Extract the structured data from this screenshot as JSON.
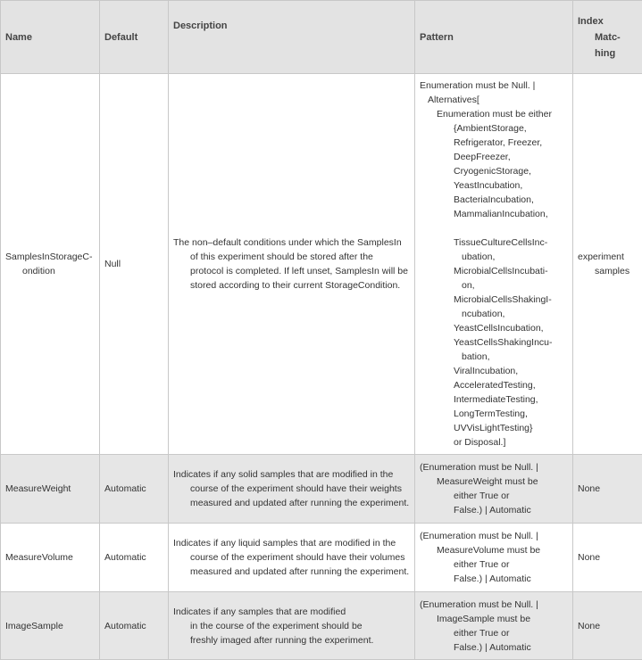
{
  "headers": {
    "name": "Name",
    "default": "Default",
    "description": "Description",
    "pattern": "Pattern",
    "index": [
      "Index",
      "Matc-",
      "hing"
    ]
  },
  "rows": [
    {
      "name": [
        "SamplesInStorageC-",
        "ondition"
      ],
      "default": "Null",
      "description": [
        "The non–default conditions under which the SamplesIn",
        "of this experiment should be stored after the",
        "protocol is completed. If left unset, SamplesIn will be",
        "stored according to their current StorageCondition."
      ],
      "pattern": [
        [
          0,
          "Enumeration must be Null.  |"
        ],
        [
          1,
          "Alternatives["
        ],
        [
          2,
          "Enumeration must be either"
        ],
        [
          3,
          "{AmbientStorage,"
        ],
        [
          3,
          "Refrigerator, Freezer,"
        ],
        [
          3,
          "DeepFreezer,"
        ],
        [
          3,
          "CryogenicStorage,"
        ],
        [
          3,
          "YeastIncubation,"
        ],
        [
          3,
          "BacteriaIncubation,"
        ],
        [
          3,
          "MammalianIncubation,"
        ],
        [
          3,
          ""
        ],
        [
          3,
          "TissueCultureCellsInc-"
        ],
        [
          4,
          "ubation,"
        ],
        [
          3,
          "MicrobialCellsIncubati-"
        ],
        [
          4,
          "on,"
        ],
        [
          3,
          "MicrobialCellsShakingI-"
        ],
        [
          4,
          "ncubation,"
        ],
        [
          3,
          "YeastCellsIncubation,"
        ],
        [
          3,
          "YeastCellsShakingIncu-"
        ],
        [
          4,
          "bation,"
        ],
        [
          3,
          "ViralIncubation,"
        ],
        [
          3,
          "AcceleratedTesting,"
        ],
        [
          3,
          "IntermediateTesting,"
        ],
        [
          3,
          "LongTermTesting,"
        ],
        [
          3,
          "UVVisLightTesting}"
        ],
        [
          3,
          "or Disposal.]"
        ]
      ],
      "index": [
        "experiment",
        "samples"
      ]
    },
    {
      "name": [
        "MeasureWeight"
      ],
      "default": "Automatic",
      "description": [
        "Indicates if any solid samples that are modified in the",
        "course of the experiment should have their weights",
        "measured and updated after running the experiment."
      ],
      "pattern": [
        [
          0,
          "(Enumeration must be Null.  |"
        ],
        [
          2,
          "MeasureWeight must be"
        ],
        [
          3,
          "either True or"
        ],
        [
          3,
          "False.) | Automatic"
        ]
      ],
      "index": [
        "None"
      ]
    },
    {
      "name": [
        "MeasureVolume"
      ],
      "default": "Automatic",
      "description": [
        "Indicates if any liquid samples that are modified in the",
        "course of the experiment should have their volumes",
        "measured and updated after running the experiment."
      ],
      "pattern": [
        [
          0,
          "(Enumeration must be Null.  |"
        ],
        [
          2,
          "MeasureVolume must be"
        ],
        [
          3,
          "either True or"
        ],
        [
          3,
          "False.) | Automatic"
        ]
      ],
      "index": [
        "None"
      ]
    },
    {
      "name": [
        "ImageSample"
      ],
      "default": "Automatic",
      "description": [
        "Indicates if any samples that are modified",
        "in the course of the experiment should be",
        "freshly imaged after running the experiment."
      ],
      "pattern": [
        [
          0,
          "(Enumeration must be Null.  |"
        ],
        [
          2,
          "ImageSample must be"
        ],
        [
          3,
          "either True or"
        ],
        [
          3,
          "False.) | Automatic"
        ]
      ],
      "index": [
        "None"
      ]
    }
  ]
}
